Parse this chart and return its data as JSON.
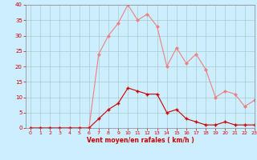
{
  "x": [
    0,
    1,
    2,
    3,
    4,
    5,
    6,
    7,
    8,
    9,
    10,
    11,
    12,
    13,
    14,
    15,
    16,
    17,
    18,
    19,
    20,
    21,
    22,
    23
  ],
  "rafales": [
    0,
    0,
    0,
    0,
    0,
    0,
    0,
    24,
    30,
    34,
    40,
    35,
    37,
    33,
    20,
    26,
    21,
    24,
    19,
    10,
    12,
    11,
    7,
    9
  ],
  "vent_moyen": [
    0,
    0,
    0,
    0,
    0,
    0,
    0,
    3,
    6,
    8,
    13,
    12,
    11,
    11,
    5,
    6,
    3,
    2,
    1,
    1,
    2,
    1,
    1,
    1
  ],
  "xlabel": "Vent moyen/en rafales ( km/h )",
  "ylim": [
    0,
    40
  ],
  "xlim": [
    -0.5,
    23
  ],
  "yticks": [
    0,
    5,
    10,
    15,
    20,
    25,
    30,
    35,
    40
  ],
  "xticks": [
    0,
    1,
    2,
    3,
    4,
    5,
    6,
    7,
    8,
    9,
    10,
    11,
    12,
    13,
    14,
    15,
    16,
    17,
    18,
    19,
    20,
    21,
    22,
    23
  ],
  "color_rafales": "#f08080",
  "color_vent": "#cc0000",
  "bg_color": "#cceeff",
  "grid_color": "#aacccc",
  "text_color": "#cc0000",
  "spine_color": "#888888"
}
